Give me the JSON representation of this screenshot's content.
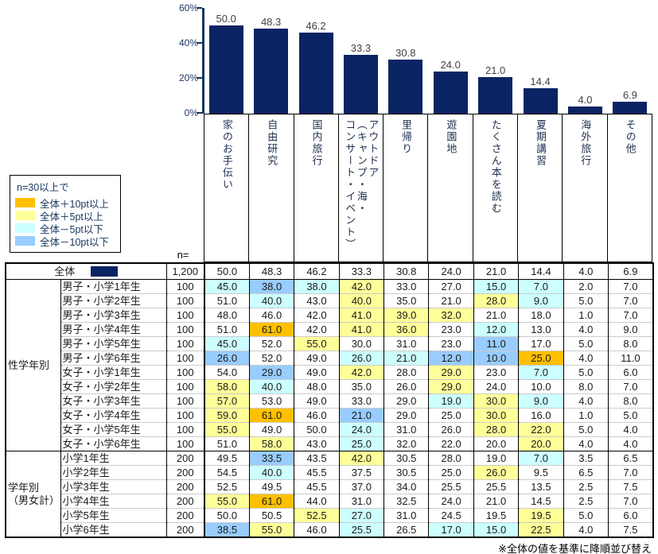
{
  "chart_data": {
    "type": "bar",
    "title": "",
    "categories": [
      "家のお手伝い",
      "自由研究",
      "国内旅行",
      "アウトドア\n（キャンプ・海・\nコンサート・イベント）",
      "里帰り",
      "遊園地",
      "たくさん本を読む",
      "夏期講習",
      "海外旅行",
      "その他"
    ],
    "values": [
      50.0,
      48.3,
      46.2,
      33.3,
      30.8,
      24.0,
      21.0,
      14.4,
      4.0,
      6.9
    ],
    "ylim": [
      0,
      60
    ],
    "yticks": [
      "0%",
      "20%",
      "40%",
      "60%"
    ],
    "grid": false,
    "bar_color": "#0A2463",
    "table": {
      "n_header": "n=",
      "overall": {
        "label": "全体",
        "n": "1,200",
        "values": [
          50.0,
          48.3,
          46.2,
          33.3,
          30.8,
          24.0,
          21.0,
          14.4,
          4.0,
          6.9
        ]
      },
      "groups": [
        {
          "label": "性学年別",
          "rows": [
            {
              "label": "男子・小学1年生",
              "n": "100",
              "values": [
                45.0,
                38.0,
                38.0,
                42.0,
                33.0,
                27.0,
                15.0,
                7.0,
                2.0,
                7.0
              ]
            },
            {
              "label": "男子・小学2年生",
              "n": "100",
              "values": [
                51.0,
                40.0,
                43.0,
                40.0,
                35.0,
                21.0,
                28.0,
                9.0,
                5.0,
                7.0
              ]
            },
            {
              "label": "男子・小学3年生",
              "n": "100",
              "values": [
                48.0,
                46.0,
                42.0,
                41.0,
                39.0,
                32.0,
                21.0,
                18.0,
                1.0,
                7.0
              ]
            },
            {
              "label": "男子・小学4年生",
              "n": "100",
              "values": [
                51.0,
                61.0,
                42.0,
                41.0,
                36.0,
                23.0,
                12.0,
                13.0,
                4.0,
                9.0
              ]
            },
            {
              "label": "男子・小学5年生",
              "n": "100",
              "values": [
                45.0,
                52.0,
                55.0,
                30.0,
                31.0,
                23.0,
                11.0,
                17.0,
                5.0,
                8.0
              ]
            },
            {
              "label": "男子・小学6年生",
              "n": "100",
              "values": [
                26.0,
                52.0,
                49.0,
                26.0,
                21.0,
                12.0,
                10.0,
                25.0,
                4.0,
                11.0
              ]
            },
            {
              "label": "女子・小学1年生",
              "n": "100",
              "values": [
                54.0,
                29.0,
                49.0,
                42.0,
                28.0,
                29.0,
                23.0,
                7.0,
                5.0,
                6.0
              ]
            },
            {
              "label": "女子・小学2年生",
              "n": "100",
              "values": [
                58.0,
                40.0,
                48.0,
                35.0,
                26.0,
                29.0,
                24.0,
                10.0,
                8.0,
                7.0
              ]
            },
            {
              "label": "女子・小学3年生",
              "n": "100",
              "values": [
                57.0,
                53.0,
                49.0,
                33.0,
                29.0,
                19.0,
                30.0,
                9.0,
                4.0,
                8.0
              ]
            },
            {
              "label": "女子・小学4年生",
              "n": "100",
              "values": [
                59.0,
                61.0,
                46.0,
                21.0,
                29.0,
                25.0,
                30.0,
                16.0,
                1.0,
                5.0
              ]
            },
            {
              "label": "女子・小学5年生",
              "n": "100",
              "values": [
                55.0,
                49.0,
                50.0,
                24.0,
                31.0,
                26.0,
                28.0,
                22.0,
                5.0,
                4.0
              ]
            },
            {
              "label": "女子・小学6年生",
              "n": "100",
              "values": [
                51.0,
                58.0,
                43.0,
                25.0,
                32.0,
                22.0,
                20.0,
                20.0,
                4.0,
                4.0
              ]
            }
          ]
        },
        {
          "label": "学年別\n（男女計）",
          "rows": [
            {
              "label": "小学1年生",
              "n": "200",
              "values": [
                49.5,
                33.5,
                43.5,
                42.0,
                30.5,
                28.0,
                19.0,
                7.0,
                3.5,
                6.5
              ]
            },
            {
              "label": "小学2年生",
              "n": "200",
              "values": [
                54.5,
                40.0,
                45.5,
                37.5,
                30.5,
                25.0,
                26.0,
                9.5,
                6.5,
                7.0
              ]
            },
            {
              "label": "小学3年生",
              "n": "200",
              "values": [
                52.5,
                49.5,
                45.5,
                37.0,
                34.0,
                25.5,
                25.5,
                13.5,
                2.5,
                7.5
              ]
            },
            {
              "label": "小学4年生",
              "n": "200",
              "values": [
                55.0,
                61.0,
                44.0,
                31.0,
                32.5,
                24.0,
                21.0,
                14.5,
                2.5,
                7.0
              ]
            },
            {
              "label": "小学5年生",
              "n": "200",
              "values": [
                50.0,
                50.5,
                52.5,
                27.0,
                31.0,
                24.5,
                19.5,
                19.5,
                5.0,
                6.0
              ]
            },
            {
              "label": "小学6年生",
              "n": "200",
              "values": [
                38.5,
                55.0,
                46.0,
                25.5,
                26.5,
                17.0,
                15.0,
                22.5,
                4.0,
                7.5
              ]
            }
          ]
        }
      ]
    }
  },
  "legend": {
    "title": "n=30以上で",
    "items": [
      {
        "label": "全体＋10pt以上",
        "color": "#FFC000",
        "threshold_pt": 10
      },
      {
        "label": "全体＋5pt以上",
        "color": "#FFFF99",
        "threshold_pt": 5
      },
      {
        "label": "全体－5pt以下",
        "color": "#CCFFFF",
        "threshold_pt": -5
      },
      {
        "label": "全体－10pt以下",
        "color": "#99CCFF",
        "threshold_pt": -10
      }
    ]
  },
  "footnote": "※全体の値を基準に降順並び替え"
}
